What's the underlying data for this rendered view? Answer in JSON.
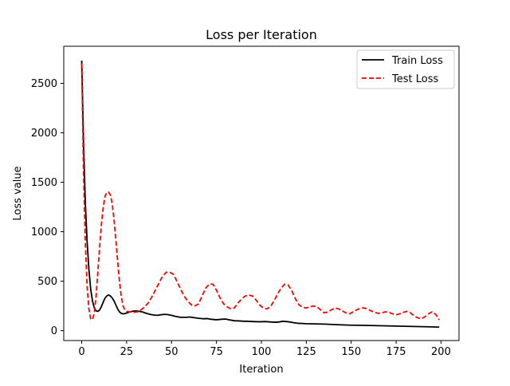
{
  "chart_data": {
    "type": "line",
    "title": "Loss per Iteration",
    "xlabel": "Iteration",
    "ylabel": "Loss value",
    "xlim": [
      -10,
      210
    ],
    "ylim": [
      -100,
      2875
    ],
    "xticks": [
      0,
      25,
      50,
      75,
      100,
      125,
      150,
      175,
      200
    ],
    "yticks": [
      0,
      500,
      1000,
      1500,
      2000,
      2500
    ],
    "grid": false,
    "legend_position": "top-right",
    "series": [
      {
        "name": "Train Loss",
        "color": "#000000",
        "style": "solid",
        "x": [
          0,
          1,
          2,
          3,
          4,
          5,
          6,
          7,
          8,
          9,
          10,
          11,
          12,
          13,
          14,
          15,
          16,
          17,
          18,
          19,
          20,
          21,
          22,
          23,
          24,
          25,
          26,
          28,
          30,
          32,
          34,
          36,
          38,
          40,
          42,
          44,
          46,
          48,
          50,
          52,
          55,
          58,
          60,
          62,
          65,
          68,
          70,
          72,
          75,
          78,
          80,
          82,
          85,
          88,
          90,
          92,
          95,
          98,
          100,
          102,
          105,
          108,
          110,
          112,
          115,
          118,
          120,
          125,
          130,
          135,
          140,
          145,
          150,
          155,
          160,
          165,
          170,
          175,
          180,
          185,
          190,
          195,
          199
        ],
        "y": [
          2730,
          1900,
          1300,
          900,
          620,
          420,
          300,
          230,
          200,
          195,
          210,
          245,
          290,
          330,
          352,
          360,
          350,
          330,
          300,
          260,
          220,
          190,
          175,
          170,
          172,
          178,
          185,
          195,
          200,
          195,
          188,
          175,
          165,
          158,
          155,
          160,
          165,
          162,
          155,
          145,
          135,
          135,
          138,
          133,
          125,
          120,
          122,
          115,
          110,
          115,
          118,
          110,
          100,
          98,
          95,
          95,
          92,
          90,
          90,
          92,
          88,
          85,
          88,
          95,
          90,
          80,
          75,
          70,
          68,
          66,
          62,
          58,
          55,
          54,
          52,
          50,
          48,
          46,
          44,
          42,
          40,
          38,
          36
        ]
      },
      {
        "name": "Test Loss",
        "color": "#ff0000",
        "style": "dashed",
        "x": [
          0,
          1,
          2,
          3,
          4,
          5,
          6,
          7,
          8,
          9,
          10,
          11,
          12,
          13,
          14,
          15,
          16,
          17,
          18,
          19,
          20,
          21,
          22,
          23,
          24,
          25,
          27,
          29,
          31,
          33,
          35,
          37,
          39,
          41,
          43,
          45,
          47,
          49,
          51,
          53,
          55,
          57,
          59,
          61,
          63,
          65,
          67,
          69,
          71,
          73,
          75,
          77,
          79,
          81,
          83,
          85,
          87,
          89,
          91,
          93,
          95,
          97,
          99,
          101,
          103,
          105,
          107,
          109,
          111,
          113,
          115,
          117,
          119,
          121,
          123,
          125,
          127,
          129,
          131,
          133,
          135,
          137,
          139,
          141,
          143,
          145,
          147,
          149,
          151,
          153,
          155,
          157,
          159,
          161,
          163,
          165,
          167,
          169,
          171,
          173,
          175,
          177,
          179,
          181,
          183,
          185,
          187,
          189,
          191,
          193,
          195,
          197,
          199
        ],
        "y": [
          2700,
          1600,
          900,
          450,
          220,
          120,
          110,
          180,
          350,
          600,
          850,
          1080,
          1250,
          1360,
          1400,
          1400,
          1370,
          1280,
          1120,
          920,
          700,
          500,
          350,
          250,
          210,
          195,
          190,
          185,
          190,
          210,
          240,
          280,
          340,
          410,
          480,
          550,
          590,
          590,
          570,
          500,
          420,
          350,
          300,
          260,
          250,
          270,
          350,
          430,
          470,
          470,
          410,
          330,
          270,
          240,
          220,
          230,
          280,
          320,
          350,
          360,
          350,
          310,
          260,
          230,
          220,
          240,
          300,
          370,
          430,
          470,
          460,
          400,
          320,
          260,
          235,
          230,
          240,
          250,
          240,
          210,
          180,
          190,
          210,
          230,
          220,
          200,
          180,
          170,
          190,
          210,
          225,
          230,
          220,
          200,
          185,
          175,
          180,
          190,
          185,
          170,
          160,
          170,
          185,
          195,
          180,
          150,
          130,
          120,
          140,
          170,
          190,
          165,
          110
        ]
      }
    ]
  }
}
